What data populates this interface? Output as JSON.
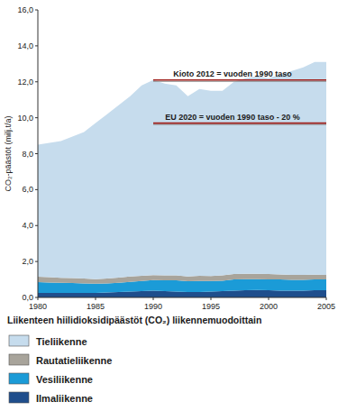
{
  "chart_data": {
    "type": "area",
    "stacked": true,
    "title": "Liikenteen hiilidioksidipäästöt (CO₂) liikennemuodoittain",
    "y_label": "CO₂-päästöt (milj.t/a)",
    "legend": "bottom",
    "x": [
      1980,
      1981,
      1982,
      1983,
      1984,
      1985,
      1986,
      1987,
      1988,
      1989,
      1990,
      1991,
      1992,
      1993,
      1994,
      1995,
      1996,
      1997,
      1998,
      1999,
      2000,
      2001,
      2002,
      2003,
      2004,
      2005
    ],
    "xlim": [
      1980,
      2005
    ],
    "xticks": [
      1980,
      1985,
      1990,
      1995,
      2000,
      2005
    ],
    "ylim": [
      0,
      16
    ],
    "yticks": [
      {
        "value": 0,
        "label": "0,0"
      },
      {
        "value": 2,
        "label": "2,0"
      },
      {
        "value": 4,
        "label": "4,0"
      },
      {
        "value": 6,
        "label": "6,0"
      },
      {
        "value": 8,
        "label": "8,0"
      },
      {
        "value": 10,
        "label": "10,0"
      },
      {
        "value": 12,
        "label": "12,0"
      },
      {
        "value": 14,
        "label": "14,0"
      },
      {
        "value": 16,
        "label": "16,0"
      }
    ],
    "series": [
      {
        "name": "Tieliikenne",
        "color": "#c6dced",
        "values": [
          7.35,
          7.47,
          7.61,
          7.87,
          8.15,
          8.68,
          9.15,
          9.6,
          10.03,
          10.6,
          10.86,
          10.67,
          10.57,
          10.03,
          10.4,
          10.31,
          10.27,
          10.7,
          10.88,
          10.98,
          10.9,
          11.12,
          11.35,
          11.55,
          11.83,
          11.85
        ]
      },
      {
        "name": "Rautatieliikenne",
        "color": "#a8a49b",
        "values": [
          0.3,
          0.3,
          0.28,
          0.28,
          0.27,
          0.25,
          0.27,
          0.28,
          0.3,
          0.29,
          0.28,
          0.28,
          0.28,
          0.27,
          0.28,
          0.27,
          0.3,
          0.3,
          0.3,
          0.3,
          0.3,
          0.28,
          0.27,
          0.27,
          0.27,
          0.25
        ]
      },
      {
        "name": "Vesiliikenne",
        "color": "#1b9bd7",
        "values": [
          0.6,
          0.58,
          0.56,
          0.55,
          0.53,
          0.52,
          0.5,
          0.52,
          0.55,
          0.56,
          0.58,
          0.6,
          0.62,
          0.6,
          0.62,
          0.6,
          0.58,
          0.62,
          0.62,
          0.6,
          0.6,
          0.62,
          0.6,
          0.6,
          0.6,
          0.6
        ]
      },
      {
        "name": "Ilmaliikenne",
        "color": "#1f4e8c",
        "values": [
          0.25,
          0.25,
          0.25,
          0.25,
          0.25,
          0.25,
          0.28,
          0.3,
          0.32,
          0.35,
          0.38,
          0.35,
          0.33,
          0.3,
          0.3,
          0.32,
          0.35,
          0.38,
          0.4,
          0.42,
          0.4,
          0.38,
          0.38,
          0.38,
          0.4,
          0.4
        ]
      }
    ],
    "annotations": [
      {
        "text": "Kioto 2012 = vuoden 1990 taso",
        "y": 12.1,
        "x": [
          1990,
          2005
        ],
        "color": "#a0201c"
      },
      {
        "text": "EU 2020 = vuoden 1990 taso - 20 %",
        "y": 9.7,
        "x": [
          1990,
          2005
        ],
        "color": "#a0201c"
      }
    ]
  }
}
